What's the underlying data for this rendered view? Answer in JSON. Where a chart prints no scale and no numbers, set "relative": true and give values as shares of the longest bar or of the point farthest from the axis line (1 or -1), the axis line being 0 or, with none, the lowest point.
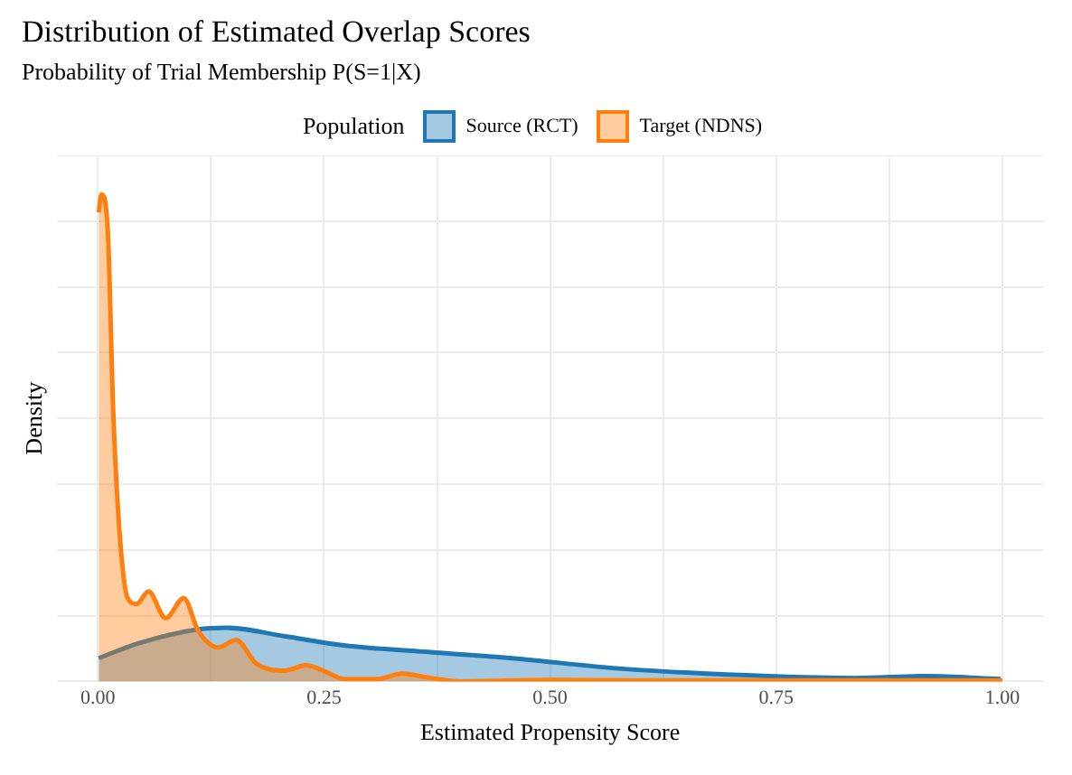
{
  "chart_data": {
    "type": "area",
    "title": "Distribution of Estimated Overlap Scores",
    "subtitle": "Probability of Trial Membership P(S=1|X)",
    "xlabel": "Estimated Propensity Score",
    "ylabel": "Density",
    "legend_title": "Population",
    "legend": "top",
    "grid": true,
    "relative": true,
    "xlim": [
      -0.045,
      1.045
    ],
    "xticks": [
      {
        "value": 0,
        "label": "0.00"
      },
      {
        "value": 0.125,
        "label": null
      },
      {
        "value": 0.25,
        "label": "0.25"
      },
      {
        "value": 0.375,
        "label": null
      },
      {
        "value": 0.5,
        "label": "0.50"
      },
      {
        "value": 0.625,
        "label": null
      },
      {
        "value": 0.75,
        "label": "0.75"
      },
      {
        "value": 0.875,
        "label": null
      },
      {
        "value": 1,
        "label": "1.00"
      }
    ],
    "series": [
      {
        "name": "Source (RCT)",
        "color": "#1f77b4",
        "x": [
          0.001,
          0.046,
          0.111,
          0.143,
          0.206,
          0.272,
          0.368,
          0.45,
          0.58,
          0.741,
          0.838,
          0.915,
          0.998
        ],
        "values": [
          0.048,
          0.079,
          0.107,
          0.11,
          0.093,
          0.074,
          0.06,
          0.049,
          0.026,
          0.011,
          0.007,
          0.011,
          0.005
        ]
      },
      {
        "name": "Target (NDNS)",
        "color": "#ff7f0e",
        "x": [
          0.001,
          0.004,
          0.011,
          0.017,
          0.024,
          0.033,
          0.043,
          0.056,
          0.075,
          0.095,
          0.111,
          0.133,
          0.153,
          0.175,
          0.206,
          0.23,
          0.252,
          0.272,
          0.31,
          0.336,
          0.368,
          0.4,
          0.5,
          0.6,
          0.75,
          1.0
        ],
        "values": [
          0.963,
          1,
          0.927,
          0.556,
          0.307,
          0.171,
          0.159,
          0.185,
          0.13,
          0.171,
          0.104,
          0.07,
          0.085,
          0.037,
          0.022,
          0.033,
          0.02,
          0.005,
          0.005,
          0.016,
          0.007,
          0,
          0.003,
          0.002,
          0.002,
          0.002
        ]
      }
    ]
  }
}
